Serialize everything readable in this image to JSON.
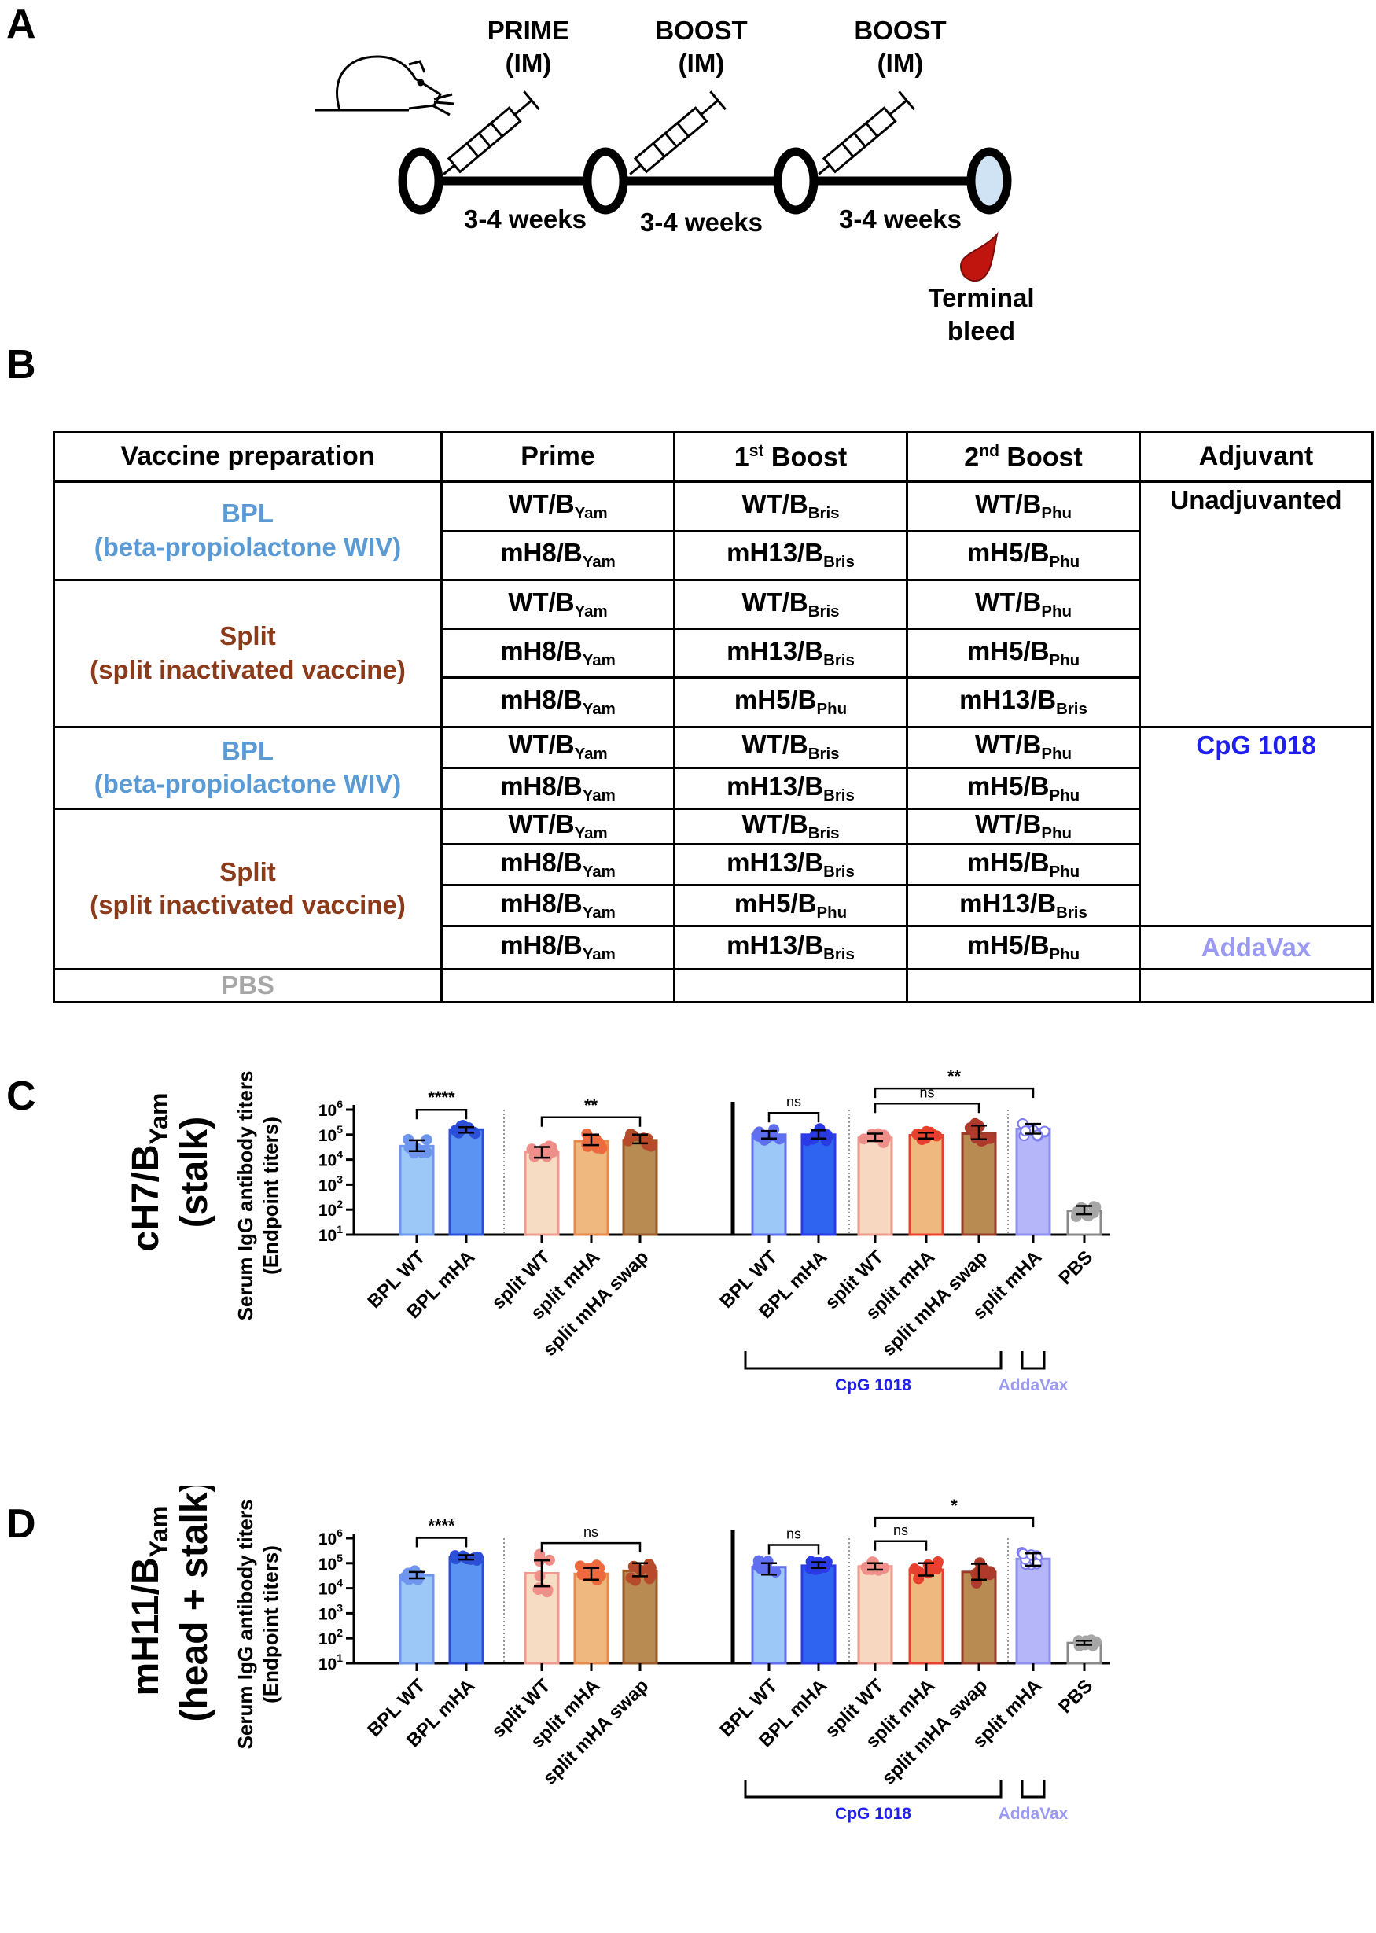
{
  "panels": {
    "a": "A",
    "b": "B",
    "c": "C",
    "d": "D"
  },
  "timeline": {
    "injections": [
      {
        "line1": "PRIME",
        "line2": "(IM)"
      },
      {
        "line1": "BOOST",
        "line2": "(IM)"
      },
      {
        "line1": "BOOST",
        "line2": "(IM)"
      }
    ],
    "intervals": [
      "3-4 weeks",
      "3-4 weeks",
      "3-4 weeks"
    ],
    "bleed": {
      "line1": "Terminal",
      "line2": "bleed"
    }
  },
  "table": {
    "headers": {
      "prep": "Vaccine preparation",
      "prime": "Prime",
      "boost1_num": "1",
      "boost1_sup": "st",
      "boost1_text": " Boost",
      "boost2_num": "2",
      "boost2_sup": "nd",
      "boost2_text": " Boost",
      "adjuvant": "Adjuvant"
    },
    "prep_labels": {
      "bpl_name": "BPL",
      "bpl_desc": "(beta-propiolactone WIV)",
      "split_name": "Split",
      "split_desc": "(split inactivated vaccine)",
      "pbs": "PBS"
    },
    "adjuvants": {
      "unadjuvanted": "Unadjuvanted",
      "cpg": "CpG 1018",
      "addavax": "AddaVax"
    },
    "rows": [
      {
        "prime": [
          "WT/B",
          "Yam"
        ],
        "b1": [
          "WT/B",
          "Bris"
        ],
        "b2": [
          "WT/B",
          "Phu"
        ]
      },
      {
        "prime": [
          "mH8/B",
          "Yam"
        ],
        "b1": [
          "mH13/B",
          "Bris"
        ],
        "b2": [
          "mH5/B",
          "Phu"
        ]
      },
      {
        "prime": [
          "WT/B",
          "Yam"
        ],
        "b1": [
          "WT/B",
          "Bris"
        ],
        "b2": [
          "WT/B",
          "Phu"
        ]
      },
      {
        "prime": [
          "mH8/B",
          "Yam"
        ],
        "b1": [
          "mH13/B",
          "Bris"
        ],
        "b2": [
          "mH5/B",
          "Phu"
        ]
      },
      {
        "prime": [
          "mH8/B",
          "Yam"
        ],
        "b1": [
          "mH5/B",
          "Phu"
        ],
        "b2": [
          "mH13/B",
          "Bris"
        ]
      },
      {
        "prime": [
          "WT/B",
          "Yam"
        ],
        "b1": [
          "WT/B",
          "Bris"
        ],
        "b2": [
          "WT/B",
          "Phu"
        ]
      },
      {
        "prime": [
          "mH8/B",
          "Yam"
        ],
        "b1": [
          "mH13/B",
          "Bris"
        ],
        "b2": [
          "mH5/B",
          "Phu"
        ]
      },
      {
        "prime": [
          "WT/B",
          "Yam"
        ],
        "b1": [
          "WT/B",
          "Bris"
        ],
        "b2": [
          "WT/B",
          "Phu"
        ]
      },
      {
        "prime": [
          "mH8/B",
          "Yam"
        ],
        "b1": [
          "mH13/B",
          "Bris"
        ],
        "b2": [
          "mH5/B",
          "Phu"
        ]
      },
      {
        "prime": [
          "mH8/B",
          "Yam"
        ],
        "b1": [
          "mH5/B",
          "Phu"
        ],
        "b2": [
          "mH13/B",
          "Bris"
        ]
      },
      {
        "prime": [
          "mH8/B",
          "Yam"
        ],
        "b1": [
          "mH13/B",
          "Bris"
        ],
        "b2": [
          "mH5/B",
          "Phu"
        ]
      }
    ]
  },
  "colors": {
    "bpl_wt": "#9cc8f7",
    "bpl_mha": "#5b93f2",
    "split_wt": "#f7dcc4",
    "split_mha": "#efb87f",
    "split_swap": "#b88b52",
    "cpg_bpl_wt": "#9cc8f7",
    "cpg_bpl_mha": "#2f64f0",
    "cpg_split_wt": "#f7d7bf",
    "cpg_split_mha": "#efb87f",
    "cpg_split_swap": "#b88b52",
    "addavax": "#b5b5fa",
    "pbs": "#ffffff",
    "cpg_text": "#1f1ff0",
    "addavax_text": "#9a9af2",
    "pbs_text": "#a6a6a6"
  },
  "chart_data": [
    {
      "type": "bar",
      "panel": "C",
      "title_line1": "cH7/B",
      "title_sub": "Yam",
      "title_line2": "(stalk)",
      "ylabel_line1": "Serum IgG antibody titers",
      "ylabel_line2": "(Endpoint titers)",
      "yscale": "log",
      "ylim": [
        10,
        1000000
      ],
      "yticks": [
        {
          "base": "10",
          "exp": "1"
        },
        {
          "base": "10",
          "exp": "2"
        },
        {
          "base": "10",
          "exp": "3"
        },
        {
          "base": "10",
          "exp": "4"
        },
        {
          "base": "10",
          "exp": "5"
        },
        {
          "base": "10",
          "exp": "6"
        }
      ],
      "categories": [
        "BPL WT",
        "BPL mHA",
        "split WT",
        "split mHA",
        "split mHA swap",
        "BPL WT",
        "BPL mHA",
        "split WT",
        "split mHA",
        "split mHA swap",
        "split mHA",
        "PBS"
      ],
      "values": [
        35000,
        160000,
        20000,
        55000,
        60000,
        100000,
        100000,
        75000,
        95000,
        110000,
        170000,
        90
      ],
      "error_low": [
        22000,
        120000,
        12000,
        38000,
        45000,
        70000,
        70000,
        55000,
        70000,
        65000,
        110000,
        65
      ],
      "error_high": [
        60000,
        200000,
        32000,
        100000,
        100000,
        140000,
        150000,
        110000,
        120000,
        230000,
        270000,
        140
      ],
      "groups": [
        {
          "label": "CpG 1018",
          "from": 5,
          "to": 9
        },
        {
          "label": "AddaVax",
          "from": 10,
          "to": 10
        }
      ],
      "significance": [
        {
          "from": 0,
          "to": 1,
          "label": "****"
        },
        {
          "from": 2,
          "to": 4,
          "label": "**"
        },
        {
          "from": 5,
          "to": 6,
          "label": "ns"
        },
        {
          "from": 7,
          "to": 9,
          "label": "ns"
        },
        {
          "from": 7,
          "to": 10,
          "label": "**"
        }
      ]
    },
    {
      "type": "bar",
      "panel": "D",
      "title_line1": "mH11/B",
      "title_sub": "Yam",
      "title_line2": "(head + stalk)",
      "ylabel_line1": "Serum IgG antibody titers",
      "ylabel_line2": "(Endpoint titers)",
      "yscale": "log",
      "ylim": [
        10,
        1000000
      ],
      "yticks": [
        {
          "base": "10",
          "exp": "1"
        },
        {
          "base": "10",
          "exp": "2"
        },
        {
          "base": "10",
          "exp": "3"
        },
        {
          "base": "10",
          "exp": "4"
        },
        {
          "base": "10",
          "exp": "5"
        },
        {
          "base": "10",
          "exp": "6"
        }
      ],
      "categories": [
        "BPL WT",
        "BPL mHA",
        "split WT",
        "split mHA",
        "split mHA swap",
        "BPL WT",
        "BPL mHA",
        "split WT",
        "split mHA",
        "split mHA swap",
        "split mHA",
        "PBS"
      ],
      "values": [
        33000,
        170000,
        40000,
        38000,
        50000,
        70000,
        80000,
        75000,
        55000,
        45000,
        150000,
        65
      ],
      "error_low": [
        25000,
        140000,
        12000,
        22000,
        30000,
        35000,
        65000,
        55000,
        32000,
        22000,
        80000,
        55
      ],
      "error_high": [
        45000,
        210000,
        130000,
        65000,
        100000,
        100000,
        110000,
        100000,
        100000,
        95000,
        250000,
        80
      ],
      "groups": [
        {
          "label": "CpG 1018",
          "from": 5,
          "to": 9
        },
        {
          "label": "AddaVax",
          "from": 10,
          "to": 10
        }
      ],
      "significance": [
        {
          "from": 0,
          "to": 1,
          "label": "****"
        },
        {
          "from": 2,
          "to": 4,
          "label": "ns"
        },
        {
          "from": 5,
          "to": 6,
          "label": "ns"
        },
        {
          "from": 7,
          "to": 8,
          "label": "ns"
        },
        {
          "from": 7,
          "to": 10,
          "label": "*"
        }
      ]
    }
  ]
}
